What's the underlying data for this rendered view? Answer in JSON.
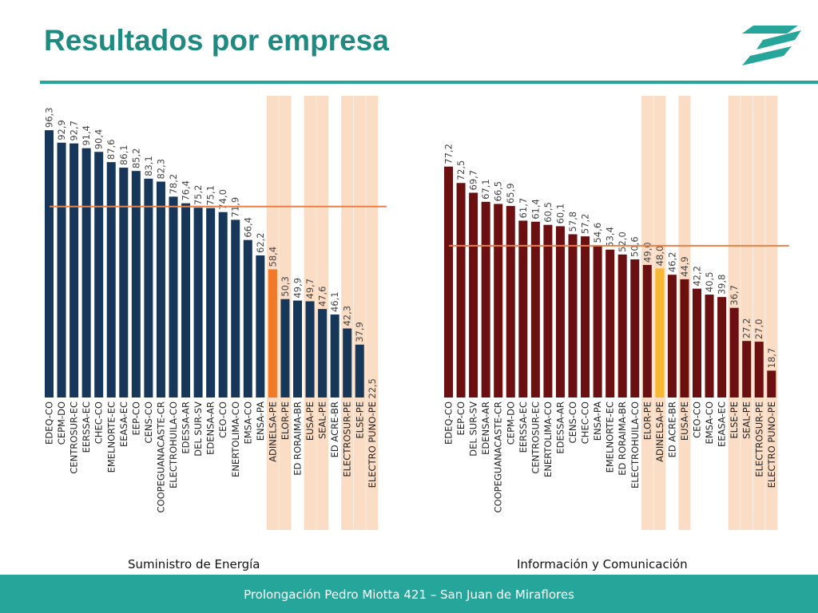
{
  "slide": {
    "title": "Resultados por empresa",
    "footer": "Prolongación Pedro Miotta 421 – San Juan de Miraflores"
  },
  "colors": {
    "title": "#1e8a80",
    "accent_line": "#26a69a",
    "navy_bar": "#16375a",
    "highlight_orange": "#f07a2a",
    "maroon_bar": "#6b0f10",
    "highlight_yellow": "#f7b733",
    "band": "#fbdcc4",
    "reference_line": "#e8804a"
  },
  "chart_data": [
    {
      "type": "bar",
      "title": "",
      "caption": "Suministro de Energía",
      "categories": [
        "EDEQ-CO",
        "CEPM-DO",
        "CENTROSUR-EC",
        "EERSSA-EC",
        "CHEC-CO",
        "EMELNORTE-EC",
        "EEASA-EC",
        "EEP-CO",
        "CENS-CO",
        "COOPEGUANACASTE-CR",
        "ELECTROHUILA-CO",
        "EDESSA-AR",
        "DEL SUR-SV",
        "EDENSA-AR",
        "CEO-CO",
        "ENERTOLIMA-CO",
        "EMSA-CO",
        "ENSA-PA",
        "ADINELSA-PE",
        "ELOR-PE",
        "ED RORAIMA-BR",
        "EUSA-PE",
        "SEAL-PE",
        "ED ACRE-BR",
        "ELECTROSUR-PE",
        "ELSE-PE",
        "ELECTRO PUNO-PE"
      ],
      "values": [
        96.3,
        92.9,
        92.7,
        91.4,
        90.4,
        87.6,
        86.1,
        85.2,
        83.1,
        82.3,
        78.2,
        76.4,
        75.2,
        75.1,
        74.0,
        71.9,
        66.4,
        62.2,
        58.4,
        50.3,
        49.9,
        49.7,
        47.6,
        46.1,
        42.3,
        37.9,
        22.5
      ],
      "value_labels": [
        "96,3",
        "92,9",
        "92,7",
        "91,4",
        "90,4",
        "87,6",
        "86,1",
        "85,2",
        "83,1",
        "82,3",
        "78,2",
        "76,4",
        "75,2",
        "75,1",
        "74,0",
        "71,9",
        "66,4",
        "62,2",
        "58,4",
        "50,3",
        "49,9",
        "49,7",
        "47,6",
        "46,1",
        "42,3",
        "37,9",
        "22,5"
      ],
      "highlighted": [
        "ADINELSA-PE"
      ],
      "banded": [
        "ADINELSA-PE",
        "ELOR-PE",
        "EUSA-PE",
        "SEAL-PE",
        "ELECTROSUR-PE",
        "ELSE-PE",
        "ELECTRO PUNO-PE"
      ],
      "reference_value": 75.5,
      "ylim": [
        0,
        100
      ]
    },
    {
      "type": "bar",
      "title": "",
      "caption": "Información y Comunicación",
      "categories": [
        "EDEQ-CO",
        "EEP-CO",
        "DEL SUR-SV",
        "EDENSA-AR",
        "COOPEGUANACASTE-CR",
        "CEPM-DO",
        "EERSSA-EC",
        "CENTROSUR-EC",
        "ENERTOLIMA-CO",
        "EDESSA-AR",
        "CENS-CO",
        "CHEC-CO",
        "ENSA-PA",
        "EMELNORTE-EC",
        "ED RORAIMA-BR",
        "ELECTROHUILA-CO",
        "ELOR-PE",
        "ADINELSA-PE",
        "ED ACRE-BR",
        "EUSA-PE",
        "CEO-CO",
        "EMSA-CO",
        "EEASA-EC",
        "ELSE-PE",
        "SEAL-PE",
        "ELECTROSUR-PE",
        "ELECTRO PUNO-PE"
      ],
      "values": [
        77.2,
        72.5,
        69.7,
        67.1,
        66.5,
        65.9,
        61.7,
        61.4,
        60.5,
        60.1,
        57.8,
        57.2,
        54.6,
        53.4,
        52.0,
        50.6,
        49.0,
        48.0,
        46.2,
        44.9,
        42.2,
        40.5,
        39.8,
        36.7,
        27.2,
        27.0,
        18.7
      ],
      "value_labels": [
        "77,2",
        "72,5",
        "69,7",
        "67,1",
        "66,5",
        "65,9",
        "61,7",
        "61,4",
        "60,5",
        "60,1",
        "57,8",
        "57,2",
        "54,6",
        "53,4",
        "52,0",
        "50,6",
        "49,0",
        "48,0",
        "46,2",
        "44,9",
        "42,2",
        "40,5",
        "39,8",
        "36,7",
        "27,2",
        "27,0",
        "18,7"
      ],
      "highlighted": [
        "ADINELSA-PE"
      ],
      "banded": [
        "ELOR-PE",
        "ADINELSA-PE",
        "EUSA-PE",
        "ELSE-PE",
        "SEAL-PE",
        "ELECTROSUR-PE",
        "ELECTRO PUNO-PE"
      ],
      "reference_value": 54.5,
      "ylim": [
        0,
        80
      ]
    }
  ]
}
